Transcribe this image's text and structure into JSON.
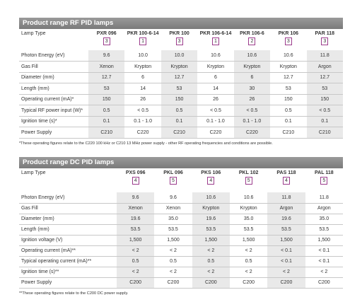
{
  "tables": [
    {
      "title": "Product range RF PID lamps",
      "header_label": "Lamp Type",
      "columns": [
        {
          "name": "PXR 096",
          "badge": "3"
        },
        {
          "name": "PKR 100-6-14",
          "badge": "1"
        },
        {
          "name": "PKR 100",
          "badge": "3"
        },
        {
          "name": "PKR 106-6-14",
          "badge": "1"
        },
        {
          "name": "PKR 106-6",
          "badge": "2"
        },
        {
          "name": "PKR 106",
          "badge": "3"
        },
        {
          "name": "PAR 118",
          "badge": "3"
        }
      ],
      "rows": [
        {
          "label": "Photon Energy (eV)",
          "values": [
            "9.6",
            "10.0",
            "10.0",
            "10.6",
            "10.6",
            "10.6",
            "11.8"
          ]
        },
        {
          "label": "Gas Fill",
          "values": [
            "Xenon",
            "Krypton",
            "Krypton",
            "Krypton",
            "Krypton",
            "Krypton",
            "Argon"
          ]
        },
        {
          "label": "Diameter (mm)",
          "values": [
            "12.7",
            "6",
            "12.7",
            "6",
            "6",
            "12.7",
            "12.7"
          ]
        },
        {
          "label": "Length (mm)",
          "values": [
            "53",
            "14",
            "53",
            "14",
            "30",
            "53",
            "53"
          ]
        },
        {
          "label": "Operating current (mA)*",
          "values": [
            "150",
            "26",
            "150",
            "26",
            "26",
            "150",
            "150"
          ]
        },
        {
          "label": "Typical RF power input (W)*",
          "values": [
            "0.5",
            "< 0.5",
            "0.5",
            "< 0.5",
            "< 0.5",
            "0.5",
            "< 0.5"
          ]
        },
        {
          "label": "Ignition time (s)*",
          "values": [
            "0.1",
            "0.1 - 1.0",
            "0.1",
            "0.1 - 1.0",
            "0.1 - 1.0",
            "0.1",
            "0.1"
          ]
        },
        {
          "label": "Power Supply",
          "values": [
            "C210",
            "C220",
            "C210",
            "C220",
            "C220",
            "C210",
            "C210"
          ]
        }
      ],
      "footnote": "*These operating figures relate to the C220 100 kHz or C210 13 MHz power supply - other RF operating frequencies and conditions are possible."
    },
    {
      "title": "Product range DC PID lamps",
      "header_label": "Lamp Type",
      "columns": [
        {
          "name": "PXS 096",
          "badge": "4"
        },
        {
          "name": "PKL 096",
          "badge": "5"
        },
        {
          "name": "PKS 106",
          "badge": "4"
        },
        {
          "name": "PKL 102",
          "badge": "5"
        },
        {
          "name": "PAS 118",
          "badge": "4"
        },
        {
          "name": "PAL 118",
          "badge": "5"
        }
      ],
      "rows": [
        {
          "label": "Photon Energy (eV)",
          "values": [
            "9.6",
            "9.6",
            "10.6",
            "10.6",
            "11.8",
            "11.8"
          ]
        },
        {
          "label": "Gas Fill",
          "values": [
            "Xenon",
            "Xenon",
            "Krypton",
            "Krypton",
            "Argon",
            "Argon"
          ]
        },
        {
          "label": "Diameter (mm)",
          "values": [
            "19.6",
            "35.0",
            "19.6",
            "35.0",
            "19.6",
            "35.0"
          ]
        },
        {
          "label": "Length (mm)",
          "values": [
            "53.5",
            "53.5",
            "53.5",
            "53.5",
            "53.5",
            "53.5"
          ]
        },
        {
          "label": "Ignition voltage (V)",
          "values": [
            "1,500",
            "1,500",
            "1,500",
            "1,500",
            "1,500",
            "1,500"
          ]
        },
        {
          "label": "Operating current (mA)**",
          "values": [
            "< 2",
            "< 2",
            "< 2",
            "< 2",
            "< 0.1",
            "< 0.1"
          ]
        },
        {
          "label": "Typical operating current (mA)**",
          "values": [
            "0.5",
            "0.5",
            "0.5",
            "0.5",
            "< 0.1",
            "< 0.1"
          ]
        },
        {
          "label": "Ignition time (s)**",
          "values": [
            "< 2",
            "< 2",
            "< 2",
            "< 2",
            "< 2",
            "< 2"
          ]
        },
        {
          "label": "Power Supply",
          "values": [
            "C200",
            "C200",
            "C200",
            "C200",
            "C200",
            "C200"
          ]
        }
      ],
      "footnote": "**These operating figures relate to the C200 DC power supply."
    }
  ]
}
